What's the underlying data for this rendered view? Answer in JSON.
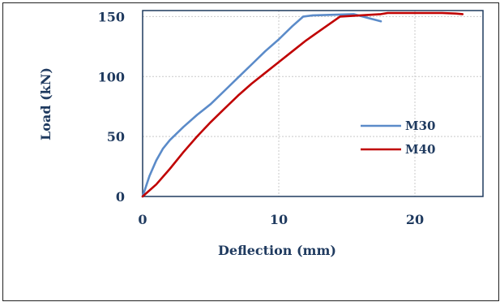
{
  "chart_data": {
    "type": "line",
    "title": "",
    "xlabel": "Deflection (mm)",
    "ylabel": "Load (kN)",
    "xlim": [
      0,
      25
    ],
    "ylim": [
      0,
      155
    ],
    "xticks": [
      0,
      10,
      20
    ],
    "yticks": [
      0,
      50,
      100,
      150
    ],
    "grid": true,
    "legend_position": "right",
    "series": [
      {
        "name": "M30",
        "color": "#5b8bc9",
        "x": [
          0,
          0.5,
          1,
          1.5,
          2,
          3,
          4,
          5,
          6,
          7,
          8,
          9,
          10,
          11,
          11.8,
          12.5,
          14,
          15.5,
          16.5,
          17.5
        ],
        "y": [
          0,
          17,
          30,
          40,
          47,
          58,
          68,
          77,
          88,
          99,
          110,
          121,
          131,
          142,
          150,
          151,
          151.5,
          152,
          149,
          146
        ]
      },
      {
        "name": "M40",
        "color": "#c00000",
        "x": [
          0,
          1,
          2,
          3,
          4,
          5,
          6,
          7,
          8,
          9,
          10,
          11,
          12,
          13,
          14,
          14.5,
          16,
          17.5,
          18,
          19,
          20,
          21,
          22,
          23,
          23.5
        ],
        "y": [
          0,
          10,
          23,
          37,
          50,
          62,
          73,
          84,
          94,
          103,
          112,
          121,
          130,
          138,
          146,
          150,
          151,
          152,
          153,
          153,
          153,
          153,
          153,
          152.5,
          152
        ]
      }
    ]
  }
}
